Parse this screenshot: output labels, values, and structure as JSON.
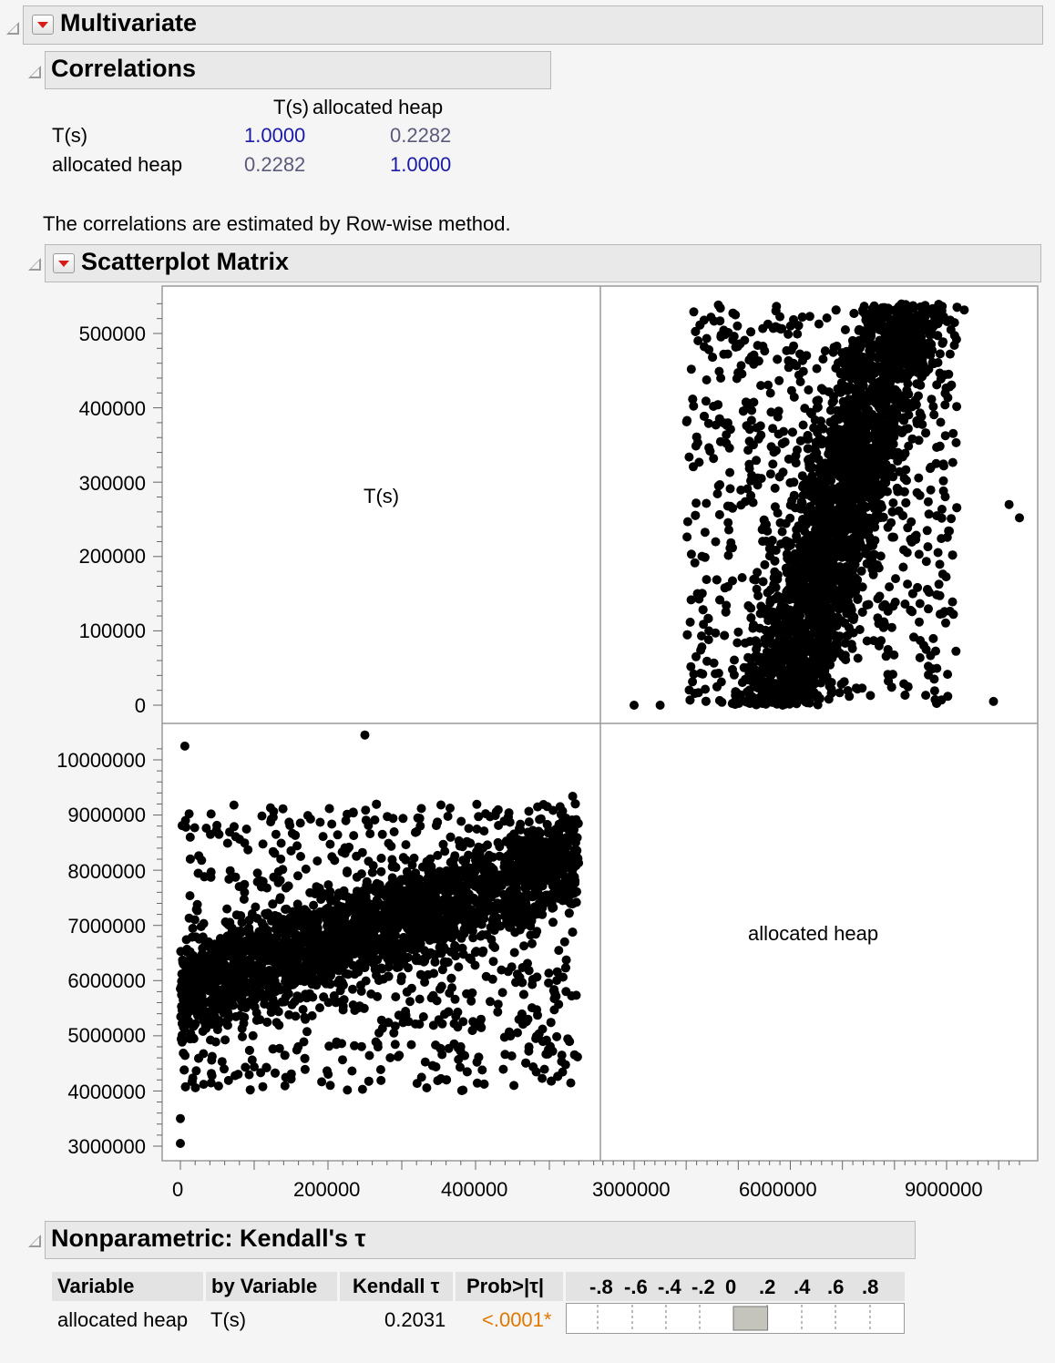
{
  "multivariate": {
    "title": "Multivariate"
  },
  "correlations": {
    "title": "Correlations",
    "columns": [
      "T(s)",
      "allocated heap"
    ],
    "rows": [
      {
        "label": "T(s)",
        "values": [
          "1.0000",
          "0.2282"
        ]
      },
      {
        "label": "allocated heap",
        "values": [
          "0.2282",
          "1.0000"
        ]
      }
    ],
    "note": "The correlations are estimated by Row-wise method."
  },
  "scatterplot": {
    "title": "Scatterplot Matrix",
    "diag_labels": [
      "T(s)",
      "allocated heap"
    ],
    "ts_ticks": [
      "500000",
      "400000",
      "300000",
      "200000",
      "100000",
      "0"
    ],
    "heap_ticks": [
      "10000000",
      "9000000",
      "8000000",
      "7000000",
      "6000000",
      "5000000",
      "4000000",
      "3000000"
    ],
    "x_ts_ticks": [
      "0",
      "200000",
      "400000"
    ],
    "x_heap_ticks": [
      "3000000",
      "6000000",
      "9000000"
    ]
  },
  "kendall": {
    "title": "Nonparametric: Kendall's τ",
    "headers": {
      "variable": "Variable",
      "by_variable": "by Variable",
      "tau": "Kendall τ",
      "prob": "Prob>|τ|"
    },
    "scale_labels": [
      "-.8",
      "-.6",
      "-.4",
      "-.2",
      "0",
      ".2",
      ".4",
      ".6",
      ".8"
    ],
    "row": {
      "variable": "allocated heap",
      "by_variable": "T(s)",
      "tau": "0.2031",
      "prob": "<.0001*",
      "tau_value": 0.2031
    }
  },
  "colors": {
    "prob_sig": "#e07800",
    "diag_blue": "#1a1aa6",
    "bar_fill": "#c4c4bc"
  }
}
